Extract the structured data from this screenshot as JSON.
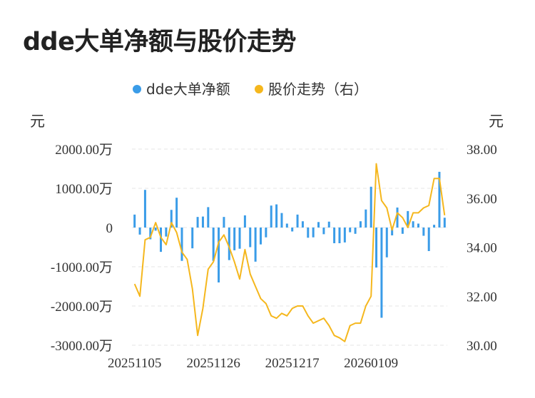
{
  "title": "dde大单净额与股价走势",
  "chart_data": {
    "type": "bar+line",
    "title": "dde大单净额与股价走势",
    "legend": [
      {
        "name": "dde大单净额",
        "color": "#3a9ce8"
      },
      {
        "name": "股价走势（右）",
        "color": "#f5b71d"
      }
    ],
    "legend_position": "top-center",
    "y_left_unit": "元",
    "y_right_unit": "元",
    "y_left_ticks": [
      "2000.00万",
      "1000.00万",
      "0",
      "-1000.00万",
      "-2000.00万",
      "-3000.00万"
    ],
    "y_left_range": [
      -3000,
      2000
    ],
    "y_right_ticks": [
      "38.00",
      "36.00",
      "34.00",
      "32.00",
      "30.00"
    ],
    "y_right_range": [
      30,
      38
    ],
    "x_ticks": [
      {
        "label": "20251105",
        "index": 0
      },
      {
        "label": "20251126",
        "index": 15
      },
      {
        "label": "20251217",
        "index": 30
      },
      {
        "label": "20260109",
        "index": 45
      }
    ],
    "grid": "horizontal dashed",
    "series": [
      {
        "name": "dde大单净额",
        "type": "bar",
        "axis": "left",
        "values": [
          330,
          -180,
          960,
          -300,
          -80,
          -620,
          -230,
          450,
          760,
          -850,
          0,
          -530,
          270,
          280,
          520,
          -850,
          -1400,
          270,
          -830,
          -580,
          -540,
          310,
          -500,
          -870,
          -430,
          -250,
          560,
          590,
          370,
          100,
          -100,
          330,
          160,
          -260,
          -250,
          140,
          -170,
          150,
          -400,
          -400,
          -380,
          -120,
          -160,
          160,
          460,
          1040,
          -1020,
          -2300,
          -760,
          -200,
          510,
          -160,
          420,
          160,
          100,
          -210,
          -600,
          70,
          1420,
          250
        ]
      },
      {
        "name": "股价走势（右）",
        "type": "line",
        "axis": "right",
        "values": [
          32.5,
          32.0,
          34.3,
          34.4,
          35.0,
          34.4,
          34.1,
          35.0,
          34.6,
          33.8,
          33.5,
          32.3,
          30.4,
          31.5,
          33.1,
          33.4,
          34.2,
          34.5,
          34.0,
          33.4,
          32.7,
          33.9,
          32.9,
          32.4,
          31.9,
          31.7,
          31.2,
          31.1,
          31.3,
          31.2,
          31.5,
          31.6,
          31.6,
          31.2,
          30.9,
          31.0,
          31.1,
          30.8,
          30.4,
          30.3,
          30.15,
          30.8,
          30.9,
          30.9,
          31.6,
          32.0,
          37.4,
          35.9,
          35.6,
          34.7,
          35.4,
          35.2,
          34.8,
          35.4,
          35.4,
          35.6,
          35.7,
          36.8,
          36.8,
          35.3
        ]
      }
    ]
  }
}
